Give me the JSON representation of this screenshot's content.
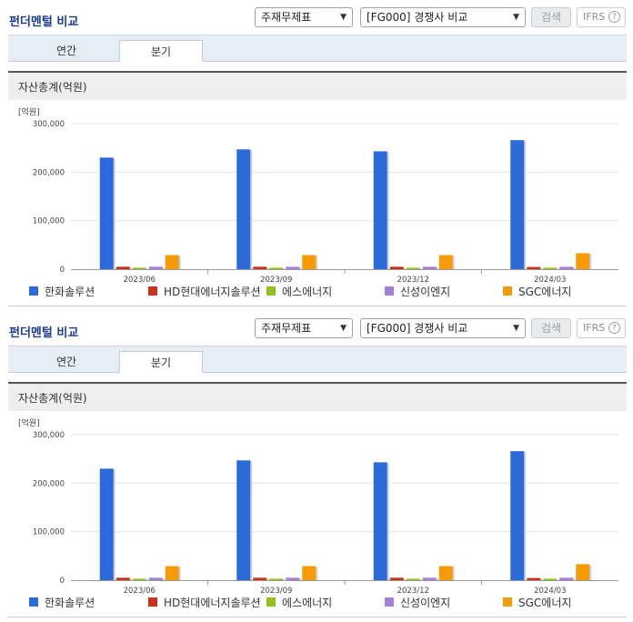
{
  "panels": [
    {
      "title": "펀더멘털 비교",
      "select1": "주재무제표",
      "select2": "[FG000] 경쟁사 비교",
      "search_label": "검색",
      "ifrs_label": "IFRS",
      "tabs": [
        "연간",
        "분기"
      ],
      "active_tab": "분기",
      "section_title": "자산총계(억원)"
    },
    {
      "title": "펀더멘털 비교",
      "select1": "주재무제표",
      "select2": "[FG000] 경쟁사 비교",
      "search_label": "검색",
      "ifrs_label": "IFRS",
      "tabs": [
        "연간",
        "분기"
      ],
      "active_tab": "분기",
      "section_title": "자산총계(억원)"
    }
  ],
  "chart_data": [
    {
      "type": "bar",
      "unit_label": "[억원]",
      "categories": [
        "2023/06",
        "2023/09",
        "2023/12",
        "2024/03"
      ],
      "ylim": [
        0,
        300000
      ],
      "yticks": [
        "0",
        "100,000",
        "200,000",
        "300,000"
      ],
      "grid": true,
      "legend_position": "bottom",
      "series": [
        {
          "name": "한화솔루션",
          "color": "#2b6ad8",
          "values": [
            230000,
            247000,
            243000,
            266000
          ]
        },
        {
          "name": "HD현대에너지솔루션",
          "color": "#c8321a",
          "values": [
            5000,
            5000,
            5000,
            4500
          ]
        },
        {
          "name": "에스에너지",
          "color": "#8fc21c",
          "values": [
            3000,
            3000,
            3000,
            3000
          ]
        },
        {
          "name": "신성이엔지",
          "color": "#a57fd8",
          "values": [
            5000,
            5000,
            5000,
            5000
          ]
        },
        {
          "name": "SGC에너지",
          "color": "#f59b0a",
          "values": [
            29000,
            29000,
            29000,
            33000
          ]
        }
      ]
    },
    {
      "type": "bar",
      "unit_label": "[억원]",
      "categories": [
        "2023/06",
        "2023/09",
        "2023/12",
        "2024/03"
      ],
      "ylim": [
        0,
        300000
      ],
      "yticks": [
        "0",
        "100,000",
        "200,000",
        "300,000"
      ],
      "grid": true,
      "legend_position": "bottom",
      "series": [
        {
          "name": "한화솔루션",
          "color": "#2b6ad8",
          "values": [
            230000,
            247000,
            243000,
            266000
          ]
        },
        {
          "name": "HD현대에너지솔루션",
          "color": "#c8321a",
          "values": [
            5000,
            5000,
            5000,
            4500
          ]
        },
        {
          "name": "에스에너지",
          "color": "#8fc21c",
          "values": [
            3000,
            3000,
            3000,
            3000
          ]
        },
        {
          "name": "신성이엔지",
          "color": "#a57fd8",
          "values": [
            5000,
            5000,
            5000,
            5000
          ]
        },
        {
          "name": "SGC에너지",
          "color": "#f59b0a",
          "values": [
            29000,
            29000,
            29000,
            33000
          ]
        }
      ]
    }
  ]
}
